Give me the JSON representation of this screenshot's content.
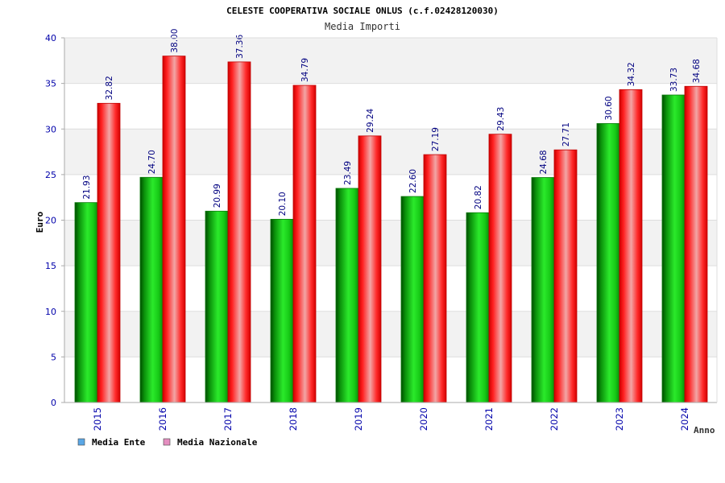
{
  "chart_data": {
    "type": "bar",
    "title": "CELESTE COOPERATIVA SOCIALE ONLUS (c.f.02428120030)",
    "subtitle": "Media Importi",
    "xlabel": "Anno",
    "ylabel": "Euro",
    "ylim": [
      0,
      40
    ],
    "yticks": [
      "0",
      "5",
      "10",
      "15",
      "20",
      "25",
      "30",
      "35",
      "40"
    ],
    "categories": [
      "2015",
      "2016",
      "2017",
      "2018",
      "2019",
      "2020",
      "2021",
      "2022",
      "2023",
      "2024"
    ],
    "series": [
      {
        "name": "Media Ente",
        "values": [
          21.93,
          24.7,
          20.99,
          20.1,
          23.49,
          22.6,
          20.82,
          24.68,
          30.6,
          33.73
        ],
        "labels": [
          "21.93",
          "24.70",
          "20.99",
          "20.10",
          "23.49",
          "22.60",
          "20.82",
          "24.68",
          "30.60",
          "33.73"
        ]
      },
      {
        "name": "Media Nazionale",
        "values": [
          32.82,
          38.0,
          37.36,
          34.79,
          29.24,
          27.19,
          29.43,
          27.71,
          34.32,
          34.68
        ],
        "labels": [
          "32.82",
          "38.00",
          "37.36",
          "34.79",
          "29.24",
          "27.19",
          "29.43",
          "27.71",
          "34.32",
          "34.68"
        ]
      }
    ],
    "legend": [
      {
        "name": "Media Ente",
        "swatch_color": "#5aa7e6"
      },
      {
        "name": "Media Nazionale",
        "swatch_color": "#e58ec0"
      }
    ],
    "legend_position": "bottom-left",
    "grid": true,
    "colors": {
      "title": "#000000",
      "subtitle": "#333333",
      "axis_text": "#0000aa",
      "data_label": "#000080",
      "grid_band": "#f2f2f2",
      "grid_line": "#dddddd",
      "green_dark": "#006400",
      "green_mid": "#1fdc1f",
      "red_dark": "#c80000",
      "red_mid": "#ff4040",
      "red_center": "#f0a8a8"
    }
  }
}
